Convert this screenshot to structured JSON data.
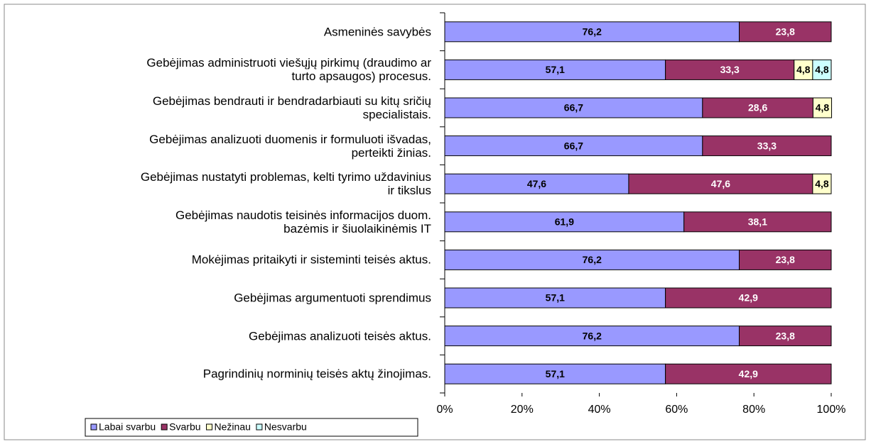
{
  "chart_data": {
    "type": "stacked-bar-horizontal",
    "categories": [
      "Asmeninės savybės",
      "Gebėjimas administruoti viešųjų pirkimų (draudimo ar\nturto apsaugos) procesus.",
      "Gebėjimas bendrauti ir bendradarbiauti su kitų sričių\nspecialistais.",
      "Gebėjimas analizuoti duomenis ir formuluoti išvadas,\nperteikti žinias.",
      "Gebėjimas nustatyti problemas, kelti tyrimo uždavinius\nir tikslus",
      "Gebėjimas naudotis teisinės informacijos duom.\nbazėmis ir šiuolaikinėmis IT",
      "Mokėjimas pritaikyti ir sisteminti teisės aktus.",
      "Gebėjimas argumentuoti sprendimus",
      "Gebėjimas analizuoti teisės aktus.",
      "Pagrindinių norminių teisės aktų žinojimas."
    ],
    "series": [
      {
        "name": "Labai svarbu",
        "color": "#9999ff",
        "label_color": "#000000",
        "values": [
          76.2,
          57.1,
          66.7,
          66.7,
          47.6,
          61.9,
          76.2,
          57.1,
          76.2,
          57.1
        ],
        "value_labels": [
          "76,2",
          "57,1",
          "66,7",
          "66,7",
          "47,6",
          "61,9",
          "76,2",
          "57,1",
          "76,2",
          "57,1"
        ]
      },
      {
        "name": "Svarbu",
        "color": "#993366",
        "label_color": "#ffffff",
        "values": [
          23.8,
          33.3,
          28.6,
          33.3,
          47.6,
          38.1,
          23.8,
          42.9,
          23.8,
          42.9
        ],
        "value_labels": [
          "23,8",
          "33,3",
          "28,6",
          "33,3",
          "47,6",
          "38,1",
          "23,8",
          "42,9",
          "23,8",
          "42,9"
        ]
      },
      {
        "name": "Nežinau",
        "color": "#ffffcc",
        "label_color": "#000000",
        "values": [
          null,
          4.8,
          4.8,
          null,
          4.8,
          null,
          null,
          null,
          null,
          null
        ],
        "value_labels": [
          null,
          "4,8",
          "4,8",
          null,
          "4,8",
          null,
          null,
          null,
          null,
          null
        ]
      },
      {
        "name": "Nesvarbu",
        "color": "#ccffff",
        "label_color": "#000000",
        "values": [
          null,
          4.8,
          null,
          null,
          null,
          null,
          null,
          null,
          null,
          null
        ],
        "value_labels": [
          null,
          "4,8",
          null,
          null,
          null,
          null,
          null,
          null,
          null,
          null
        ]
      }
    ],
    "xlim": [
      0,
      100
    ],
    "xticks": [
      {
        "value": 0,
        "label": "0%"
      },
      {
        "value": 20,
        "label": "20%"
      },
      {
        "value": 40,
        "label": "40%"
      },
      {
        "value": 60,
        "label": "60%"
      },
      {
        "value": 80,
        "label": "80%"
      },
      {
        "value": 100,
        "label": "100%"
      }
    ],
    "legend": "bottom-left"
  }
}
